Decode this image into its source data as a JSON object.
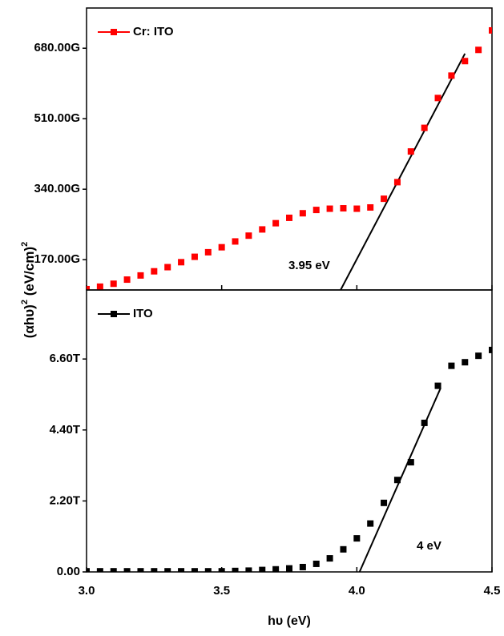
{
  "chart_data": [
    {
      "type": "scatter",
      "x": [
        3.0,
        3.05,
        3.1,
        3.15,
        3.2,
        3.25,
        3.3,
        3.35,
        3.4,
        3.45,
        3.5,
        3.55,
        3.6,
        3.65,
        3.7,
        3.75,
        3.8,
        3.85,
        3.9,
        3.95,
        4.0,
        4.05,
        4.1,
        4.15,
        4.2,
        4.25,
        4.3,
        4.35,
        4.4,
        4.45,
        4.5
      ],
      "series": [
        {
          "name": "Cr: ITO",
          "color": "#ff0000",
          "values": [
            99,
            105,
            112,
            122,
            132,
            142,
            152,
            164,
            177,
            188,
            200,
            214,
            228,
            243,
            258,
            271,
            282,
            290,
            293,
            294,
            293,
            296,
            317,
            357,
            431,
            488,
            560,
            614,
            649,
            676,
            723
          ]
        }
      ],
      "fit_line": {
        "x": [
          3.94,
          4.4
        ],
        "y": [
          97,
          667
        ]
      },
      "annotation": "3.95 eV",
      "xlim": [
        3.0,
        4.5
      ],
      "xticks": [
        3,
        3.5,
        4,
        4.5
      ],
      "ylim": [
        97,
        777
      ],
      "yticks": [
        {
          "value": 170,
          "label": "170.00G"
        },
        {
          "value": 340,
          "label": "340.00G"
        },
        {
          "value": 510,
          "label": "510.00G"
        },
        {
          "value": 680,
          "label": "680.00G"
        }
      ],
      "legend": "top-left"
    },
    {
      "type": "scatter",
      "x": [
        3.0,
        3.05,
        3.1,
        3.15,
        3.2,
        3.25,
        3.3,
        3.35,
        3.4,
        3.45,
        3.5,
        3.55,
        3.6,
        3.65,
        3.7,
        3.75,
        3.8,
        3.85,
        3.9,
        3.95,
        4.0,
        4.05,
        4.1,
        4.15,
        4.2,
        4.25,
        4.3,
        4.35,
        4.4,
        4.45,
        4.5
      ],
      "series": [
        {
          "name": "ITO",
          "color": "#000000",
          "values": [
            0.02,
            0.02,
            0.02,
            0.02,
            0.02,
            0.02,
            0.02,
            0.02,
            0.02,
            0.02,
            0.02,
            0.03,
            0.04,
            0.06,
            0.08,
            0.11,
            0.15,
            0.25,
            0.42,
            0.7,
            1.04,
            1.5,
            2.14,
            2.85,
            3.4,
            4.62,
            5.77,
            6.39,
            6.5,
            6.7,
            6.88
          ]
        }
      ],
      "fit_line": {
        "x": [
          4.01,
          4.31
        ],
        "y": [
          0,
          5.7
        ]
      },
      "annotation": "4 eV",
      "xlim": [
        3.0,
        4.5
      ],
      "xticks": [
        {
          "value": 3,
          "label": "3.0"
        },
        3.5,
        {
          "value": 4,
          "label": "4.0"
        },
        4.5
      ],
      "x_label": "hυ (eV)",
      "ylim": [
        0,
        8.74
      ],
      "yticks": [
        {
          "value": 0,
          "label": "0.00"
        },
        {
          "value": 2.2,
          "label": "2.20T"
        },
        {
          "value": 4.4,
          "label": "4.40T"
        },
        {
          "value": 6.6,
          "label": "6.60T"
        }
      ],
      "y_label": [
        "(αhυ)",
        "2",
        " (eV/cm)",
        "2"
      ],
      "legend": "top-left"
    }
  ]
}
